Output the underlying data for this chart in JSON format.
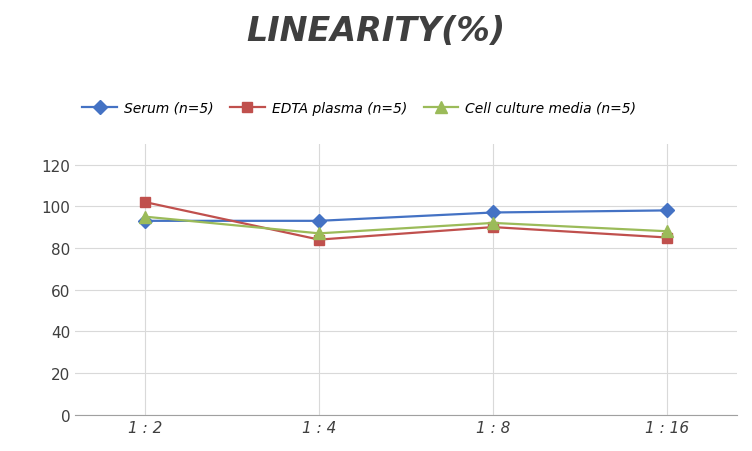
{
  "title": "LINEARITY(%)",
  "title_fontsize": 24,
  "title_fontstyle": "italic",
  "title_fontweight": "bold",
  "title_color": "#3F3F3F",
  "x_labels": [
    "1 : 2",
    "1 : 4",
    "1 : 8",
    "1 : 16"
  ],
  "x_positions": [
    0,
    1,
    2,
    3
  ],
  "ylim": [
    0,
    130
  ],
  "yticks": [
    0,
    20,
    40,
    60,
    80,
    100,
    120
  ],
  "series": [
    {
      "label": "Serum (n=5)",
      "values": [
        93,
        93,
        97,
        98
      ],
      "color": "#4472C4",
      "marker": "D",
      "marker_size": 7,
      "linewidth": 1.6
    },
    {
      "label": "EDTA plasma (n=5)",
      "values": [
        102,
        84,
        90,
        85
      ],
      "color": "#C0504D",
      "marker": "s",
      "marker_size": 7,
      "linewidth": 1.6
    },
    {
      "label": "Cell culture media (n=5)",
      "values": [
        95,
        87,
        92,
        88
      ],
      "color": "#9BBB59",
      "marker": "^",
      "marker_size": 8,
      "linewidth": 1.6
    }
  ],
  "legend_fontsize": 10,
  "grid_color": "#D9D9D9",
  "grid_linewidth": 0.8,
  "background_color": "#FFFFFF",
  "tick_fontsize": 11,
  "tick_color": "#3F3F3F",
  "xlim": [
    -0.4,
    3.4
  ]
}
